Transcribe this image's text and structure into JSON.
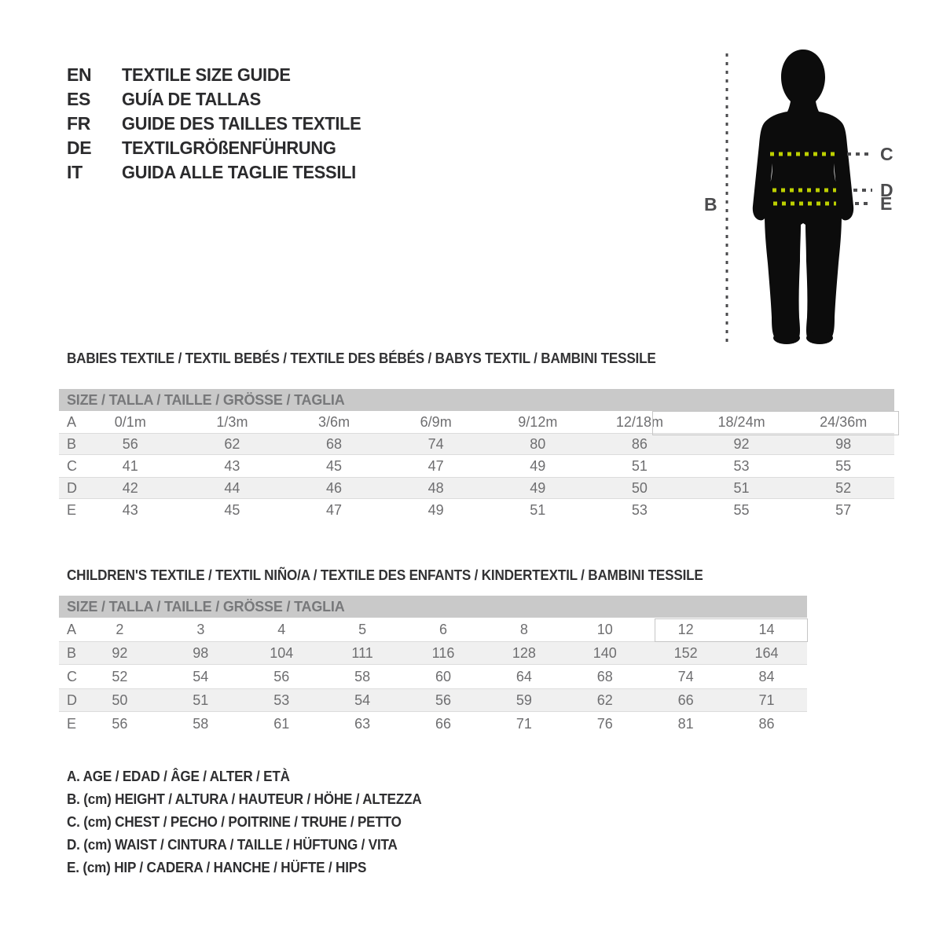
{
  "language_header": {
    "items": [
      {
        "code": "EN",
        "title": "TEXTILE SIZE GUIDE"
      },
      {
        "code": "ES",
        "title": "GUÍA DE TALLAS"
      },
      {
        "code": "FR",
        "title": "GUIDE DES TAILLES TEXTILE"
      },
      {
        "code": "DE",
        "title": "TEXTILGRÖßENFÜHRUNG"
      },
      {
        "code": "IT",
        "title": "GUIDA ALLE TAGLIE TESSILI"
      }
    ]
  },
  "figure": {
    "height_label": "B",
    "chest_label": "C",
    "waist_label": "D",
    "hip_label": "E",
    "silhouette_color": "#0c0c0c",
    "measure_line_on_body_color": "#bdd000",
    "measure_line_off_body_color": "#4f4f51"
  },
  "babies": {
    "section_title": "BABIES TEXTILE / TEXTIL BEBÉS / TEXTILE DES BÉBÉS / BABYS TEXTIL / BAMBINI TESSILE",
    "size_header": "SIZE / TALLA / TAILLE / GRÖSSE / TAGLIA",
    "rows": [
      {
        "label": "A",
        "values": [
          "0/1m",
          "1/3m",
          "3/6m",
          "6/9m",
          "9/12m",
          "12/18m",
          "18/24m",
          "24/36m"
        ]
      },
      {
        "label": "B",
        "values": [
          "56",
          "62",
          "68",
          "74",
          "80",
          "86",
          "92",
          "98"
        ]
      },
      {
        "label": "C",
        "values": [
          "41",
          "43",
          "45",
          "47",
          "49",
          "51",
          "53",
          "55"
        ]
      },
      {
        "label": "D",
        "values": [
          "42",
          "44",
          "46",
          "48",
          "49",
          "50",
          "51",
          "52"
        ]
      },
      {
        "label": "E",
        "values": [
          "43",
          "45",
          "47",
          "49",
          "51",
          "53",
          "55",
          "57"
        ]
      }
    ]
  },
  "children": {
    "section_title": "CHILDREN'S TEXTILE / TEXTIL NIÑO/A / TEXTILE DES ENFANTS / KINDERTEXTIL / BAMBINI TESSILE",
    "size_header": "SIZE / TALLA / TAILLE / GRÖSSE / TAGLIA",
    "rows": [
      {
        "label": "A",
        "values": [
          "2",
          "3",
          "4",
          "5",
          "6",
          "8",
          "10",
          "12",
          "14"
        ]
      },
      {
        "label": "B",
        "values": [
          "92",
          "98",
          "104",
          "111",
          "116",
          "128",
          "140",
          "152",
          "164"
        ]
      },
      {
        "label": "C",
        "values": [
          "52",
          "54",
          "56",
          "58",
          "60",
          "64",
          "68",
          "74",
          "84"
        ]
      },
      {
        "label": "D",
        "values": [
          "50",
          "51",
          "53",
          "54",
          "56",
          "59",
          "62",
          "66",
          "71"
        ]
      },
      {
        "label": "E",
        "values": [
          "56",
          "58",
          "61",
          "63",
          "66",
          "71",
          "76",
          "81",
          "86"
        ]
      }
    ]
  },
  "legend": {
    "items": [
      "A. AGE / EDAD / ÂGE / ALTER / ETÀ",
      "B. (cm) HEIGHT / ALTURA / HAUTEUR / HÖHE / ALTEZZA",
      "C. (cm) CHEST / PECHO / POITRINE / TRUHE / PETTO",
      "D. (cm) WAIST / CINTURA / TAILLE / HÜFTUNG / VITA",
      "E. (cm) HIP / CADERA / HANCHE / HÜFTE / HIPS"
    ]
  },
  "colors": {
    "table_header_bg": "#c9c9c9",
    "table_header_text": "#77787a",
    "stripe_bg": "#f0f0f0",
    "stripe_border": "#dcdcdc",
    "cell_text": "#6e6e70",
    "heading_text": "#2b2b2d",
    "highlight_border": "#c6c6c6",
    "accent_green": "#bdd000"
  }
}
